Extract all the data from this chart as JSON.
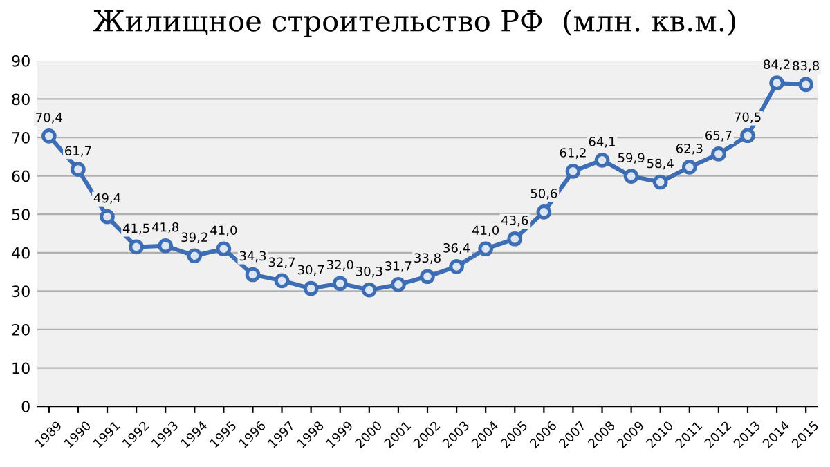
{
  "chart_data": {
    "type": "line",
    "title": "Жилищное строительство РФ  (млн. кв.м.)",
    "categories": [
      "1989",
      "1990",
      "1991",
      "1992",
      "1993",
      "1994",
      "1995",
      "1996",
      "1997",
      "1998",
      "1999",
      "2000",
      "2001",
      "2002",
      "2003",
      "2004",
      "2005",
      "2006",
      "2007",
      "2008",
      "2009",
      "2010",
      "2011",
      "2012",
      "2013",
      "2014",
      "2015"
    ],
    "series": [
      {
        "color": "#3d6db5",
        "values": [
          70.4,
          61.7,
          49.4,
          41.5,
          41.8,
          39.2,
          41.0,
          34.3,
          32.7,
          30.7,
          32.0,
          30.3,
          31.7,
          33.8,
          36.4,
          41.0,
          43.6,
          50.6,
          61.2,
          64.1,
          59.9,
          58.4,
          62.3,
          65.7,
          70.5,
          84.2,
          83.8
        ],
        "value_labels": [
          "70,4",
          "61,7",
          "49,4",
          "41,5",
          "41,8",
          "39,2",
          "41,0",
          "34,3",
          "32,7",
          "30,7",
          "32,0",
          "30,3",
          "31,7",
          "33,8",
          "36,4",
          "41,0",
          "43,6",
          "50,6",
          "61,2",
          "64,1",
          "59,9",
          "58,4",
          "62,3",
          "65,7",
          "70,5",
          "84,2",
          "83,8"
        ]
      }
    ],
    "ylim": [
      0,
      90
    ],
    "yticks": [
      0,
      10,
      20,
      30,
      40,
      50,
      60,
      70,
      80,
      90
    ],
    "grid": "y",
    "marker": "circle",
    "line_style": "solid",
    "legend": false
  }
}
